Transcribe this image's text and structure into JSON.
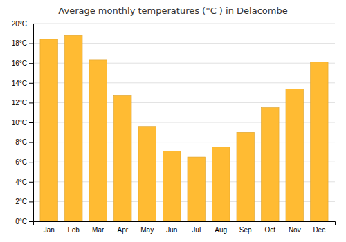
{
  "chart_data": {
    "type": "bar",
    "title": "Average monthly temperatures (°C ) in Delacombe",
    "categories": [
      "Jan",
      "Feb",
      "Mar",
      "Apr",
      "May",
      "Jun",
      "Jul",
      "Aug",
      "Sep",
      "Oct",
      "Nov",
      "Dec"
    ],
    "values": [
      18.4,
      18.8,
      16.3,
      12.7,
      9.6,
      7.1,
      6.5,
      7.5,
      9.0,
      11.5,
      13.4,
      16.1
    ],
    "color": "#FFBB33",
    "ylim": [
      0,
      20
    ],
    "yticks": [
      {
        "value": 0,
        "label": "0°C"
      },
      {
        "value": 2,
        "label": "2°C"
      },
      {
        "value": 4,
        "label": "4°C"
      },
      {
        "value": 6,
        "label": "6°C"
      },
      {
        "value": 8,
        "label": "8°C"
      },
      {
        "value": 10,
        "label": "10°C"
      },
      {
        "value": 12,
        "label": "12°C"
      },
      {
        "value": 14,
        "label": "14°C"
      },
      {
        "value": 16,
        "label": "16°C"
      },
      {
        "value": 18,
        "label": "18°C"
      },
      {
        "value": 20,
        "label": "20°C"
      }
    ],
    "grid": true
  }
}
